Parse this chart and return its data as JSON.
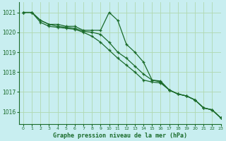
{
  "title": "Graphe pression niveau de la mer (hPa)",
  "xlim": [
    -0.5,
    23
  ],
  "ylim": [
    1015.4,
    1021.5
  ],
  "yticks": [
    1016,
    1017,
    1018,
    1019,
    1020,
    1021
  ],
  "xticks": [
    0,
    1,
    2,
    3,
    4,
    5,
    6,
    7,
    8,
    9,
    10,
    11,
    12,
    13,
    14,
    15,
    16,
    17,
    18,
    19,
    20,
    21,
    22,
    23
  ],
  "background_color": "#c8eef0",
  "grid_color": "#b0d8b0",
  "line_color": "#1a6b2a",
  "series1_x": [
    0,
    1,
    2,
    3,
    4,
    5,
    6,
    7,
    8,
    9,
    10,
    11,
    12,
    13,
    14,
    15,
    16,
    17,
    18,
    19,
    20,
    21,
    22,
    23
  ],
  "series1_y": [
    1021.0,
    1021.0,
    1020.6,
    1020.4,
    1020.4,
    1020.3,
    1020.3,
    1020.1,
    1020.1,
    1020.1,
    1021.0,
    1020.6,
    1019.4,
    1019.0,
    1018.5,
    1017.6,
    1017.55,
    1017.1,
    1016.9,
    1016.8,
    1016.6,
    1016.2,
    1016.1,
    1015.7
  ],
  "series2_x": [
    0,
    1,
    2,
    3,
    4,
    5,
    6,
    7,
    8,
    9,
    10,
    11,
    12,
    13,
    14,
    15,
    16,
    17,
    18,
    19,
    20,
    21,
    22,
    23
  ],
  "series2_y": [
    1021.0,
    1021.0,
    1020.6,
    1020.4,
    1020.3,
    1020.25,
    1020.2,
    1020.05,
    1020.0,
    1019.9,
    1019.5,
    1019.0,
    1018.7,
    1018.3,
    1017.9,
    1017.6,
    1017.5,
    1017.1,
    1016.9,
    1016.8,
    1016.6,
    1016.2,
    1016.1,
    1015.7
  ],
  "series3_x": [
    0,
    1,
    2,
    3,
    4,
    5,
    6,
    7,
    8,
    9,
    10,
    11,
    12,
    13,
    14,
    15,
    16,
    17,
    18,
    19,
    20,
    21,
    22,
    23
  ],
  "series3_y": [
    1021.0,
    1021.0,
    1020.5,
    1020.3,
    1020.25,
    1020.2,
    1020.15,
    1020.0,
    1019.8,
    1019.5,
    1019.1,
    1018.7,
    1018.35,
    1018.0,
    1017.6,
    1017.5,
    1017.45,
    1017.1,
    1016.9,
    1016.8,
    1016.6,
    1016.2,
    1016.1,
    1015.7
  ]
}
